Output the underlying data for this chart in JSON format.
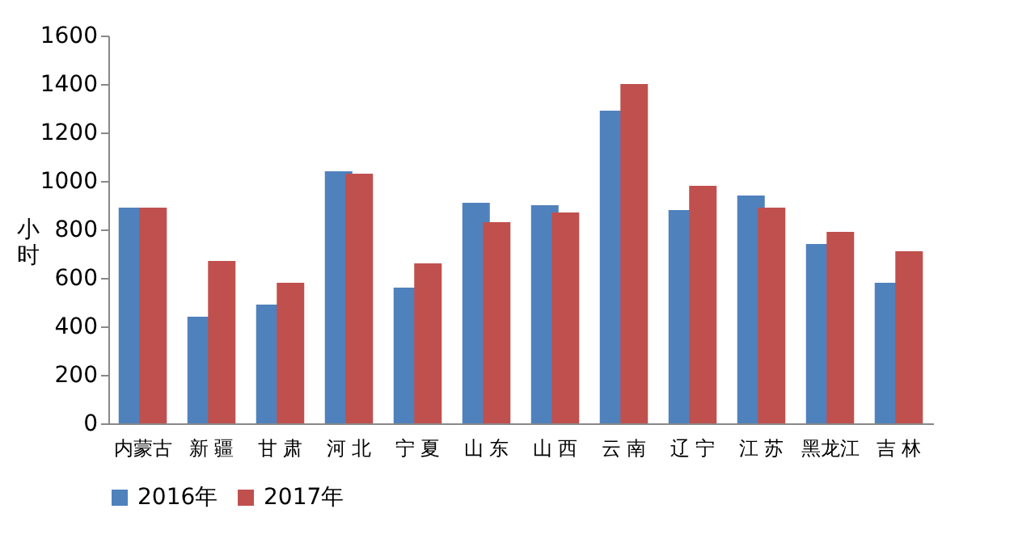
{
  "chart_data": {
    "type": "bar",
    "ylabel": "小时",
    "categories": [
      "内蒙古",
      "新 疆",
      "甘 肃",
      "河 北",
      "宁 夏",
      "山 东",
      "山 西",
      "云 南",
      "辽 宁",
      "江 苏",
      "黑龙江",
      "吉 林"
    ],
    "series": [
      {
        "name": "2016年",
        "color": "#4f81bd",
        "values": [
          890,
          440,
          490,
          1040,
          560,
          910,
          900,
          1290,
          880,
          940,
          740,
          580
        ]
      },
      {
        "name": "2017年",
        "color": "#c0504d",
        "values": [
          890,
          670,
          580,
          1030,
          660,
          830,
          870,
          1400,
          980,
          890,
          790,
          710
        ]
      }
    ],
    "ylim": [
      0,
      1600
    ],
    "yticks": [
      0,
      200,
      400,
      600,
      800,
      1000,
      1200,
      1400,
      1600
    ],
    "grid": false,
    "legend": "bottom"
  }
}
